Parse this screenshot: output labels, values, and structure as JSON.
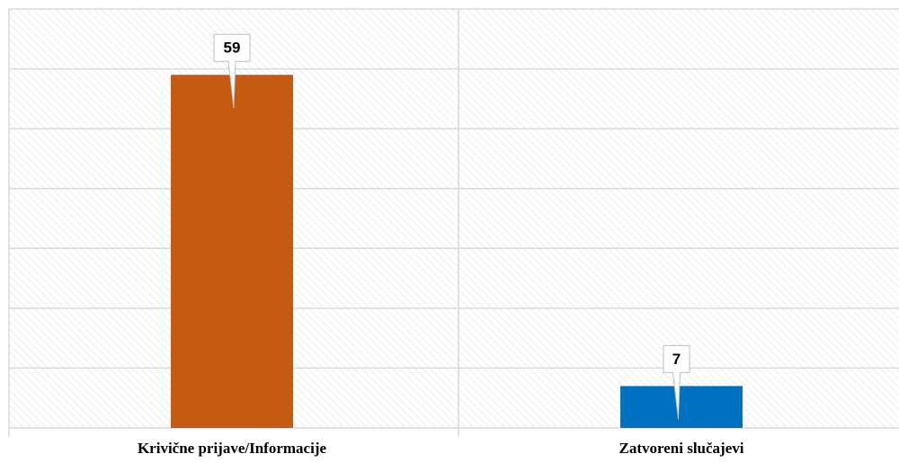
{
  "chart_data": {
    "type": "bar",
    "categories": [
      "Krivične prijave/Informacije",
      "Zatvoreni slučajevi"
    ],
    "values": [
      59,
      7
    ],
    "colors": [
      "#c55a11",
      "#0070c0"
    ],
    "ylim": [
      0,
      70
    ],
    "yticks": [
      0,
      10,
      20,
      30,
      40,
      50,
      60,
      70
    ],
    "grid": true
  }
}
